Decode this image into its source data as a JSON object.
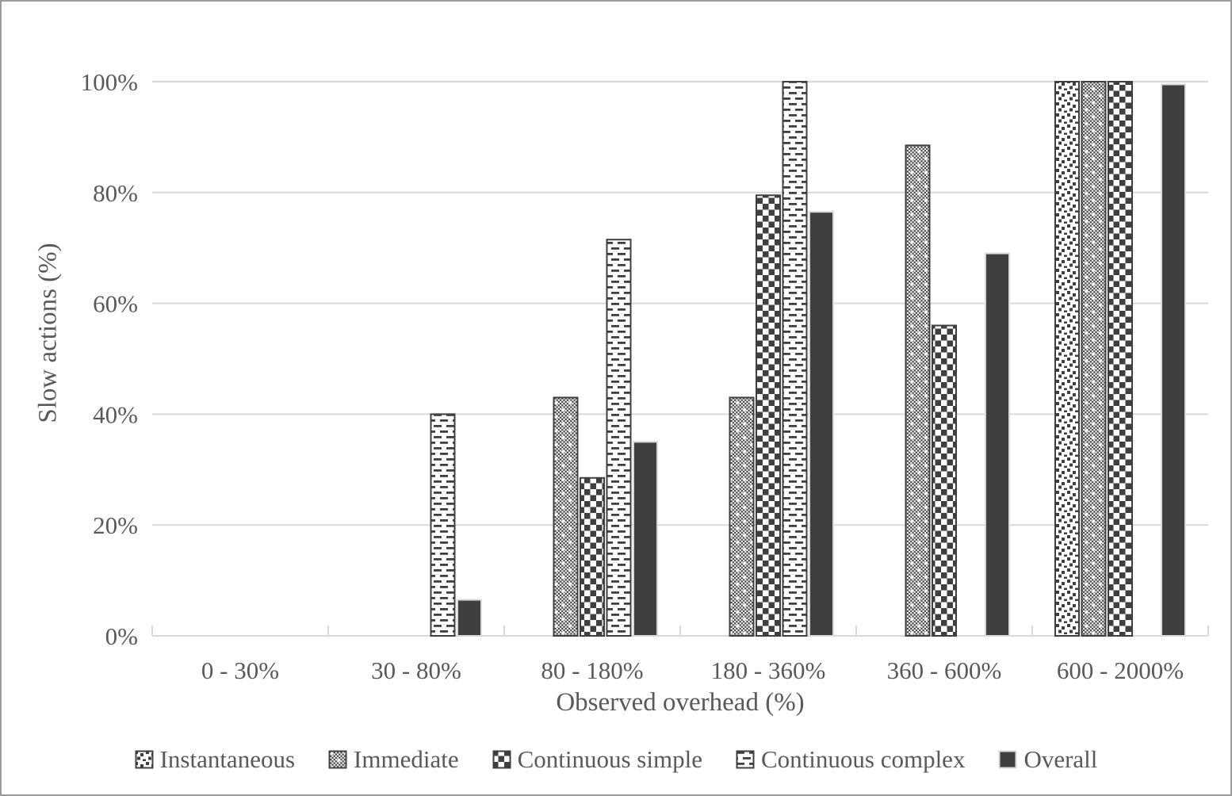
{
  "figure": {
    "background": "#ffffff",
    "border_color": "#9b9b9b"
  },
  "chart_data": {
    "type": "bar",
    "title": "",
    "xlabel": "Observed overhead (%)",
    "ylabel": "Slow actions (%)",
    "categories": [
      "0 - 30%",
      "30 - 80%",
      "80 - 180%",
      "180 - 360%",
      "360 - 600%",
      "600 - 2000%"
    ],
    "y_tick_labels": [
      "0%",
      "20%",
      "40%",
      "60%",
      "80%",
      "100%"
    ],
    "ylim": [
      0,
      100
    ],
    "y_tick_step": 20,
    "grid": true,
    "legend_position": "bottom-center",
    "series": [
      {
        "name": "Instantaneous",
        "pattern": "sparse-dots",
        "values": [
          0,
          0,
          0,
          0,
          0,
          100
        ]
      },
      {
        "name": "Immediate",
        "pattern": "dense-dots",
        "values": [
          0,
          0,
          43,
          43,
          88.5,
          100
        ]
      },
      {
        "name": "Continuous simple",
        "pattern": "checkerboard",
        "values": [
          0,
          0,
          28.5,
          79.5,
          56,
          100
        ]
      },
      {
        "name": "Continuous complex",
        "pattern": "horizontal-dashes",
        "values": [
          0,
          40,
          71.5,
          100,
          0,
          0
        ]
      },
      {
        "name": "Overall",
        "pattern": "solid",
        "values": [
          0,
          6.5,
          35,
          76.5,
          69,
          99.5
        ]
      }
    ],
    "colors": {
      "bar_dark": "#3f3f3f",
      "grid": "#d9d9d9",
      "text": "#595959",
      "background": "#ffffff"
    }
  }
}
